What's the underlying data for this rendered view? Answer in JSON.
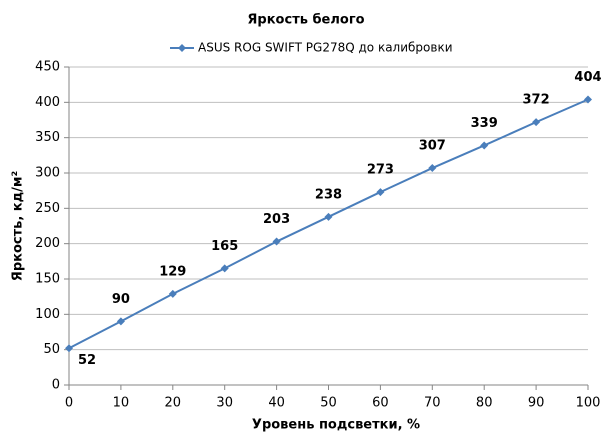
{
  "chart_data": {
    "type": "line",
    "title": "Яркость белого",
    "x_label": "Уровень подсветки, %",
    "y_label": "Яркость, кд/м²",
    "x": [
      0,
      10,
      20,
      30,
      40,
      50,
      60,
      70,
      80,
      90,
      100
    ],
    "series": [
      {
        "name": "ASUS ROG SWIFT PG278Q до калибровки",
        "color": "#4a7ebb",
        "values": [
          52,
          90,
          129,
          165,
          203,
          238,
          273,
          307,
          339,
          372,
          404
        ]
      }
    ],
    "xlim": [
      0,
      100
    ],
    "xticks": [
      0,
      10,
      20,
      30,
      40,
      50,
      60,
      70,
      80,
      90,
      100
    ],
    "ylim": [
      0,
      450
    ],
    "yticks": [
      0,
      50,
      100,
      150,
      200,
      250,
      300,
      350,
      400,
      450
    ],
    "grid": true,
    "legend": "top"
  }
}
